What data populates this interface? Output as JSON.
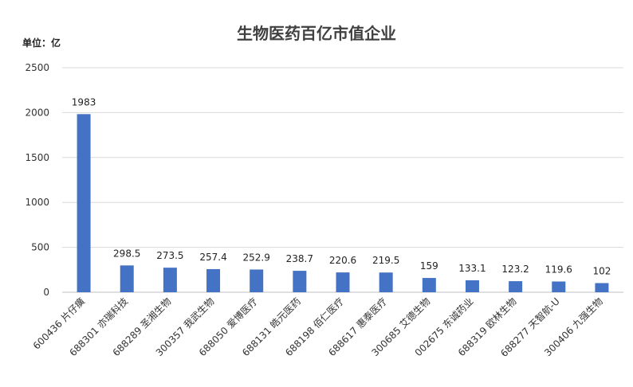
{
  "chart_data": {
    "type": "bar",
    "title": "生物医药百亿市值企业",
    "unit_label": "单位：亿",
    "categories": [
      "600436 片仔癀",
      "688301 亦瑞科技",
      "688289 圣湘生物",
      "300357 我武生物",
      "688050 爱博医疗",
      "688131 皓元医药",
      "688198 佰仁医疗",
      "688617 惠泰医疗",
      "300685 艾德生物",
      "002675 东诚药业",
      "688319 欧林生物",
      "688277 天智航-U",
      "300406 九强生物"
    ],
    "values": [
      1983,
      298.5,
      273.5,
      257.4,
      252.9,
      238.7,
      220.6,
      219.5,
      159,
      133.1,
      123.2,
      119.6,
      102
    ],
    "value_labels": [
      "1983",
      "298.5",
      "273.5",
      "257.4",
      "252.9",
      "238.7",
      "220.6",
      "219.5",
      "159",
      "133.1",
      "123.2",
      "119.6",
      "102"
    ],
    "ylim": [
      0,
      2500
    ],
    "yticks": [
      "0",
      "500",
      "1000",
      "1500",
      "2000",
      "2500"
    ],
    "grid": true,
    "bar_color": "#4472C4",
    "grid_color": "#D9D9D9"
  }
}
